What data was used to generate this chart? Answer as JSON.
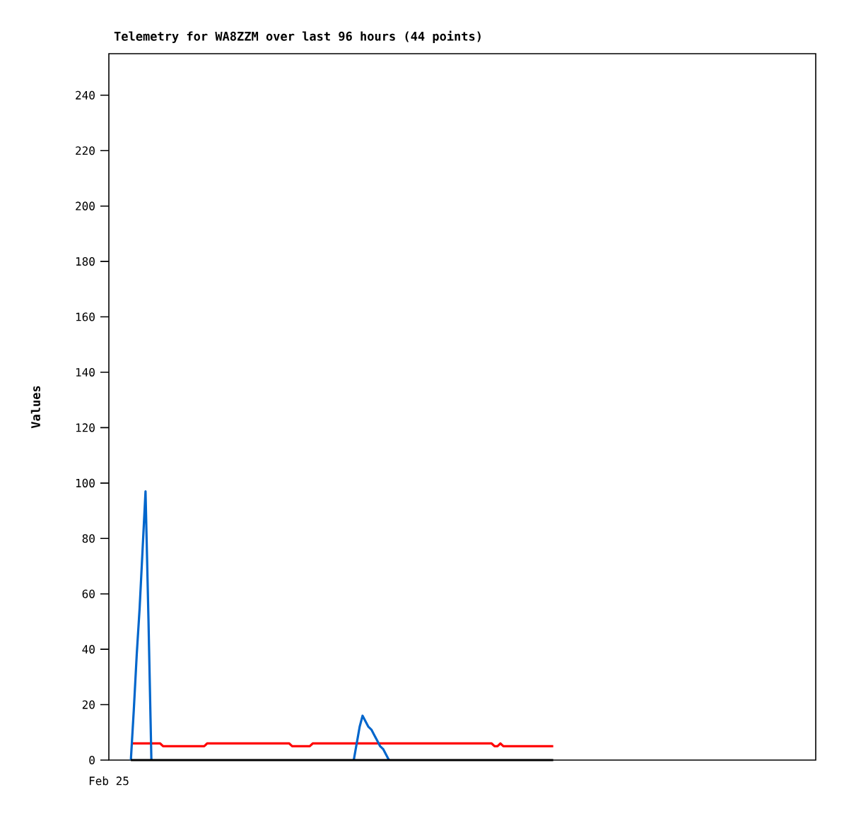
{
  "chart_data": {
    "type": "line",
    "title": "Telemetry for WA8ZZM over last 96 hours (44 points)",
    "ylabel": "Values",
    "annotations": [
      "Feb 25"
    ],
    "tick_labels": "y",
    "categories": [
      null,
      null,
      null,
      null,
      null,
      null,
      null,
      null,
      null,
      null,
      null,
      null,
      null,
      null,
      null,
      null,
      null,
      null,
      null,
      null,
      null,
      null,
      null,
      null,
      null,
      null,
      null,
      null,
      null,
      null,
      null,
      null,
      null,
      null,
      null,
      null,
      null,
      null,
      null,
      null,
      null,
      null,
      null,
      null,
      null,
      null,
      null,
      null,
      null,
      null,
      null,
      null,
      null,
      null,
      null,
      null,
      null,
      null,
      null,
      null,
      null,
      null,
      null,
      null,
      null,
      null,
      null,
      null,
      null,
      null,
      null,
      null,
      null,
      null,
      null,
      null,
      null,
      null,
      null,
      null,
      null,
      null,
      null,
      null,
      null,
      null,
      null,
      null,
      null,
      null,
      null,
      null,
      null,
      null,
      null,
      null,
      null,
      null,
      null,
      null,
      null,
      null,
      null,
      null,
      null,
      null,
      null,
      null,
      null,
      null,
      null,
      null,
      null,
      null,
      null,
      null,
      null,
      null,
      null,
      null,
      null,
      null,
      null,
      null,
      null,
      null,
      null,
      null,
      null,
      null,
      null,
      null,
      null,
      null,
      null,
      null,
      null,
      null,
      null,
      null,
      null,
      null,
      null,
      null,
      null
    ],
    "ylim": [
      0,
      255
    ],
    "yticks": [
      0,
      20,
      40,
      60,
      80,
      100,
      120,
      140,
      160,
      180,
      200,
      220,
      240
    ],
    "grid": false,
    "legend": false,
    "marker": "none",
    "line_style": "solid",
    "series": [
      {
        "color": "#ff0000",
        "values": [
          6,
          6,
          6,
          6,
          6,
          6,
          6,
          6,
          6,
          6,
          6,
          5,
          5,
          5,
          5,
          5,
          5,
          5,
          5,
          5,
          5,
          5,
          5,
          5,
          5,
          5,
          6,
          6,
          6,
          6,
          6,
          6,
          6,
          6,
          6,
          6,
          6,
          6,
          6,
          6,
          6,
          6,
          6,
          6,
          6,
          6,
          6,
          6,
          6,
          6,
          6,
          6,
          6,
          6,
          6,
          5,
          5,
          5,
          5,
          5,
          5,
          5,
          6,
          6,
          6,
          6,
          6,
          6,
          6,
          6,
          6,
          6,
          6,
          6,
          6,
          6,
          6,
          6,
          6,
          6,
          6,
          6,
          6,
          6,
          6,
          6,
          6,
          6,
          6,
          6,
          6,
          6,
          6,
          6,
          6,
          6,
          6,
          6,
          6,
          6,
          6,
          6,
          6,
          6,
          6,
          6,
          6,
          6,
          6,
          6,
          6,
          6,
          6,
          6,
          6,
          6,
          6,
          6,
          6,
          6,
          6,
          6,
          6,
          6,
          5,
          5,
          6,
          5,
          5,
          5,
          5,
          5,
          5,
          5,
          5,
          5,
          5,
          5,
          5,
          5,
          5,
          5,
          5,
          5,
          5
        ]
      },
      {
        "color": "#0066cc",
        "values": [
          0,
          18,
          38,
          55,
          76,
          97,
          51,
          0,
          null,
          null,
          null,
          null,
          null,
          null,
          null,
          null,
          null,
          null,
          null,
          null,
          null,
          null,
          null,
          null,
          null,
          null,
          null,
          null,
          null,
          null,
          null,
          null,
          null,
          null,
          null,
          null,
          null,
          null,
          null,
          null,
          null,
          null,
          null,
          null,
          null,
          null,
          null,
          null,
          null,
          null,
          null,
          null,
          null,
          null,
          null,
          null,
          null,
          null,
          null,
          null,
          null,
          null,
          null,
          null,
          null,
          null,
          null,
          null,
          null,
          null,
          null,
          null,
          null,
          null,
          null,
          null,
          0,
          6,
          12,
          16,
          14,
          12,
          11,
          9,
          7,
          5,
          4,
          2,
          0,
          null,
          null,
          null,
          null,
          null,
          null,
          null,
          null,
          null,
          null,
          null,
          null,
          null,
          null,
          null,
          null,
          null,
          null,
          null,
          null,
          null,
          null,
          null,
          null,
          null,
          null,
          null,
          null,
          null,
          null,
          null,
          null,
          null,
          null,
          null,
          null,
          null,
          null,
          null,
          null,
          null,
          null,
          null,
          null,
          null,
          null,
          null,
          null,
          null,
          null,
          null,
          null,
          null,
          null,
          null,
          null
        ]
      },
      {
        "color": "#000000",
        "values": [
          0,
          0,
          0,
          0,
          0,
          0,
          0,
          0,
          0,
          0,
          0,
          0,
          0,
          0,
          0,
          0,
          0,
          0,
          0,
          0,
          0,
          0,
          0,
          0,
          0,
          0,
          0,
          0,
          0,
          0,
          0,
          0,
          0,
          0,
          0,
          0,
          0,
          0,
          0,
          0,
          0,
          0,
          0,
          0,
          0,
          0,
          0,
          0,
          0,
          0,
          0,
          0,
          0,
          0,
          0,
          0,
          0,
          0,
          0,
          0,
          0,
          0,
          0,
          0,
          0,
          0,
          0,
          0,
          0,
          0,
          0,
          0,
          0,
          0,
          0,
          0,
          0,
          0,
          0,
          0,
          0,
          0,
          0,
          0,
          0,
          0,
          0,
          0,
          0,
          0,
          0,
          0,
          0,
          0,
          0,
          0,
          0,
          0,
          0,
          0,
          0,
          0,
          0,
          0,
          0,
          0,
          0,
          0,
          0,
          0,
          0,
          0,
          0,
          0,
          0,
          0,
          0,
          0,
          0,
          0,
          0,
          0,
          0,
          0,
          0,
          0,
          0,
          0,
          0,
          0,
          0,
          0,
          0,
          0,
          0,
          0,
          0,
          0,
          0,
          0,
          0,
          0,
          0,
          0,
          0
        ]
      }
    ]
  }
}
